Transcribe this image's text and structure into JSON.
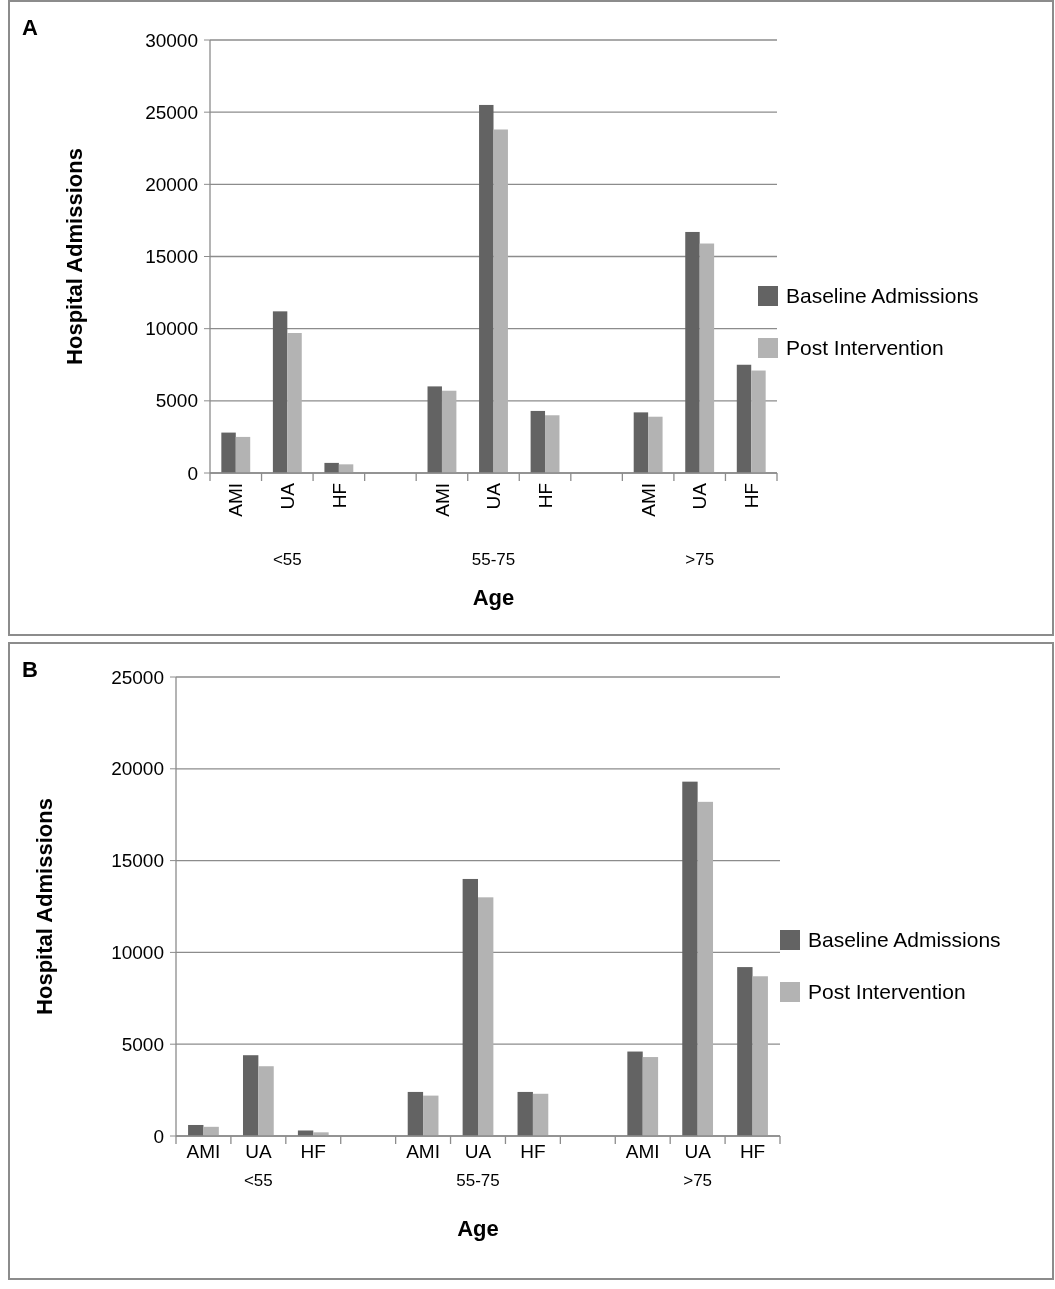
{
  "chart_data": [
    {
      "type": "bar",
      "title": "A",
      "xlabel": "Age",
      "ylabel": "Hospital Admissions",
      "categories": [
        "AMI",
        "UA",
        "HF",
        null,
        "AMI",
        "UA",
        "HF",
        null,
        "AMI",
        "UA",
        "HF"
      ],
      "series": [
        {
          "name": "Baseline Admissions",
          "color": "#636363",
          "values": [
            2800,
            11200,
            700,
            null,
            6000,
            25500,
            4300,
            null,
            4200,
            16700,
            7500
          ]
        },
        {
          "name": "Post Intervention",
          "color": "#b3b3b3",
          "values": [
            2500,
            9700,
            600,
            null,
            5700,
            23800,
            4000,
            null,
            3900,
            15900,
            7100
          ]
        }
      ],
      "ylim": [
        0,
        30000
      ],
      "yticks": [
        0,
        5000,
        10000,
        15000,
        20000,
        25000,
        30000
      ],
      "grid": "y",
      "legend": "right",
      "annotations": [
        "<55",
        "55-75",
        ">75"
      ]
    },
    {
      "type": "bar",
      "title": "B",
      "xlabel": "Age",
      "ylabel": "Hospital Admissions",
      "categories": [
        "AMI",
        "UA",
        "HF",
        null,
        "AMI",
        "UA",
        "HF",
        null,
        "AMI",
        "UA",
        "HF"
      ],
      "series": [
        {
          "name": "Baseline Admissions",
          "color": "#636363",
          "values": [
            600,
            4400,
            300,
            null,
            2400,
            14000,
            2400,
            null,
            4600,
            19300,
            9200
          ]
        },
        {
          "name": "Post Intervention",
          "color": "#b3b3b3",
          "values": [
            500,
            3800,
            200,
            null,
            2200,
            13000,
            2300,
            null,
            4300,
            18200,
            8700
          ]
        }
      ],
      "ylim": [
        0,
        25000
      ],
      "yticks": [
        0,
        5000,
        10000,
        15000,
        20000,
        25000
      ],
      "grid": "y",
      "legend": "right",
      "annotations": [
        "<55",
        "55-75",
        ">75"
      ]
    }
  ]
}
